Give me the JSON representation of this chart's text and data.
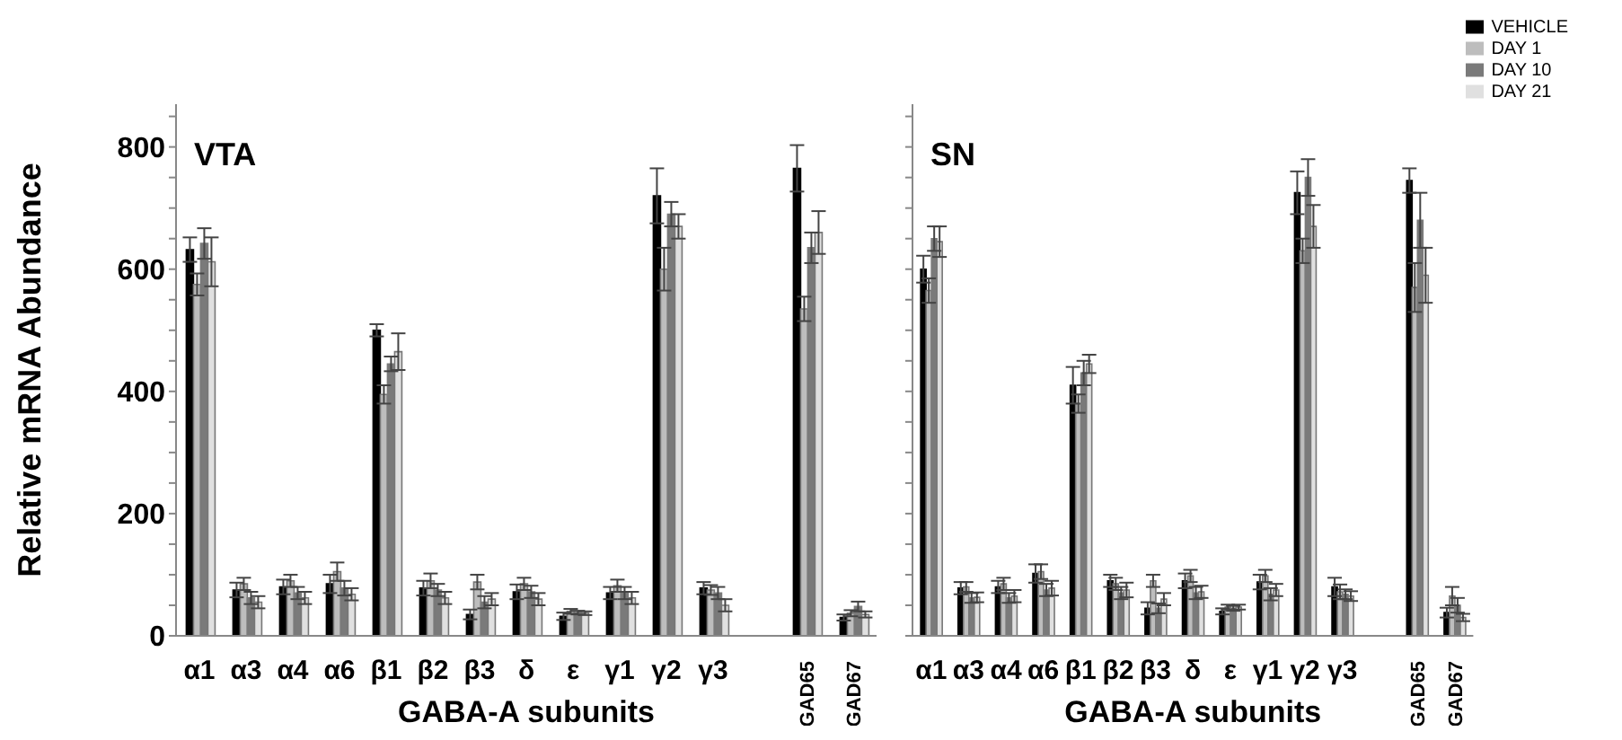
{
  "chart_data": [
    {
      "type": "bar",
      "title": "VTA",
      "xlabel": "GABA-A subunits",
      "ylabel": "Relative mRNA Abundance",
      "categories": [
        "α1",
        "α3",
        "α4",
        "α6",
        "β1",
        "β2",
        "β3",
        "δ",
        "ε",
        "γ1",
        "γ2",
        "γ3",
        null,
        "GAD65",
        "GAD67"
      ],
      "series": [
        {
          "color": "#000000",
          "values": [
            632,
            75,
            80,
            85,
            500,
            78,
            35,
            72,
            32,
            70,
            720,
            78,
            null,
            765,
            30
          ],
          "errors": [
            20,
            12,
            12,
            15,
            10,
            12,
            8,
            12,
            6,
            10,
            45,
            10,
            null,
            38,
            5
          ]
        },
        {
          "color": "#bdbdbd",
          "values": [
            575,
            85,
            90,
            105,
            395,
            90,
            88,
            85,
            40,
            82,
            600,
            75,
            null,
            535,
            37
          ],
          "errors": [
            18,
            10,
            10,
            15,
            15,
            12,
            12,
            10,
            4,
            10,
            35,
            8,
            null,
            20,
            5
          ]
        },
        {
          "color": "#7a7a7a",
          "values": [
            642,
            62,
            70,
            78,
            445,
            75,
            55,
            72,
            38,
            70,
            690,
            70,
            null,
            635,
            48
          ],
          "errors": [
            25,
            10,
            10,
            12,
            12,
            10,
            10,
            10,
            3,
            10,
            20,
            10,
            null,
            25,
            8
          ]
        },
        {
          "color": "#e0e0e0",
          "values": [
            612,
            55,
            62,
            68,
            465,
            62,
            60,
            60,
            37,
            62,
            670,
            50,
            null,
            660,
            35
          ],
          "errors": [
            40,
            10,
            10,
            10,
            30,
            10,
            10,
            10,
            3,
            10,
            20,
            10,
            null,
            35,
            5
          ]
        }
      ],
      "ylim": [
        0,
        870
      ],
      "yticks": [
        0,
        {
          "value": 50,
          "label": null
        },
        {
          "value": 100,
          "label": null
        },
        {
          "value": 150,
          "label": null
        },
        200,
        {
          "value": 250,
          "label": null
        },
        {
          "value": 300,
          "label": null
        },
        {
          "value": 350,
          "label": null
        },
        400,
        {
          "value": 450,
          "label": null
        },
        {
          "value": 500,
          "label": null
        },
        {
          "value": 550,
          "label": null
        },
        600,
        {
          "value": 650,
          "label": null
        },
        {
          "value": 700,
          "label": null
        },
        {
          "value": 750,
          "label": null
        },
        800,
        {
          "value": 850,
          "label": null
        }
      ],
      "grid": false,
      "legend": false
    },
    {
      "type": "bar",
      "title": "SN",
      "xlabel": "GABA-A subunits",
      "categories": [
        "α1",
        "α3",
        "α4",
        "α6",
        "β1",
        "β2",
        "β3",
        "δ",
        "ε",
        "γ1",
        "γ2",
        "γ3",
        null,
        "GAD65",
        "GAD67"
      ],
      "series": [
        {
          "name": "VEHICLE",
          "color": "#000000",
          "values": [
            600,
            78,
            80,
            102,
            410,
            90,
            45,
            90,
            40,
            88,
            725,
            80,
            null,
            745,
            38
          ],
          "errors": [
            22,
            10,
            10,
            15,
            30,
            10,
            10,
            12,
            5,
            12,
            35,
            15,
            null,
            20,
            8
          ]
        },
        {
          "name": "DAY 1",
          "color": "#bdbdbd",
          "values": [
            565,
            80,
            85,
            105,
            380,
            85,
            90,
            98,
            47,
            98,
            630,
            72,
            null,
            570,
            65
          ],
          "errors": [
            20,
            8,
            10,
            12,
            15,
            10,
            10,
            10,
            4,
            10,
            20,
            12,
            null,
            40,
            15
          ]
        },
        {
          "name": "DAY 10",
          "color": "#7a7a7a",
          "values": [
            650,
            62,
            62,
            75,
            430,
            70,
            45,
            70,
            45,
            68,
            750,
            68,
            null,
            680,
            50
          ],
          "errors": [
            20,
            8,
            8,
            10,
            20,
            10,
            8,
            10,
            4,
            10,
            30,
            8,
            null,
            45,
            12
          ]
        },
        {
          "name": "DAY 21",
          "color": "#e0e0e0",
          "values": [
            645,
            63,
            65,
            78,
            445,
            75,
            60,
            72,
            47,
            75,
            670,
            65,
            null,
            590,
            30
          ],
          "errors": [
            25,
            8,
            10,
            12,
            15,
            12,
            10,
            10,
            4,
            10,
            35,
            8,
            null,
            45,
            6
          ]
        }
      ],
      "ylim": [
        0,
        870
      ],
      "yticks": [
        0,
        {
          "value": 50,
          "label": null
        },
        {
          "value": 100,
          "label": null
        },
        {
          "value": 150,
          "label": null
        },
        {
          "value": 200,
          "label": null
        },
        {
          "value": 250,
          "label": null
        },
        {
          "value": 300,
          "label": null
        },
        {
          "value": 350,
          "label": null
        },
        {
          "value": 400,
          "label": null
        },
        {
          "value": 450,
          "label": null
        },
        {
          "value": 500,
          "label": null
        },
        {
          "value": 550,
          "label": null
        },
        {
          "value": 600,
          "label": null
        },
        {
          "value": 650,
          "label": null
        },
        {
          "value": 700,
          "label": null
        },
        {
          "value": 750,
          "label": null
        },
        {
          "value": 800,
          "label": null
        },
        {
          "value": 850,
          "label": null
        }
      ],
      "tick_labels": "x",
      "grid": false,
      "legend": "top right"
    }
  ]
}
